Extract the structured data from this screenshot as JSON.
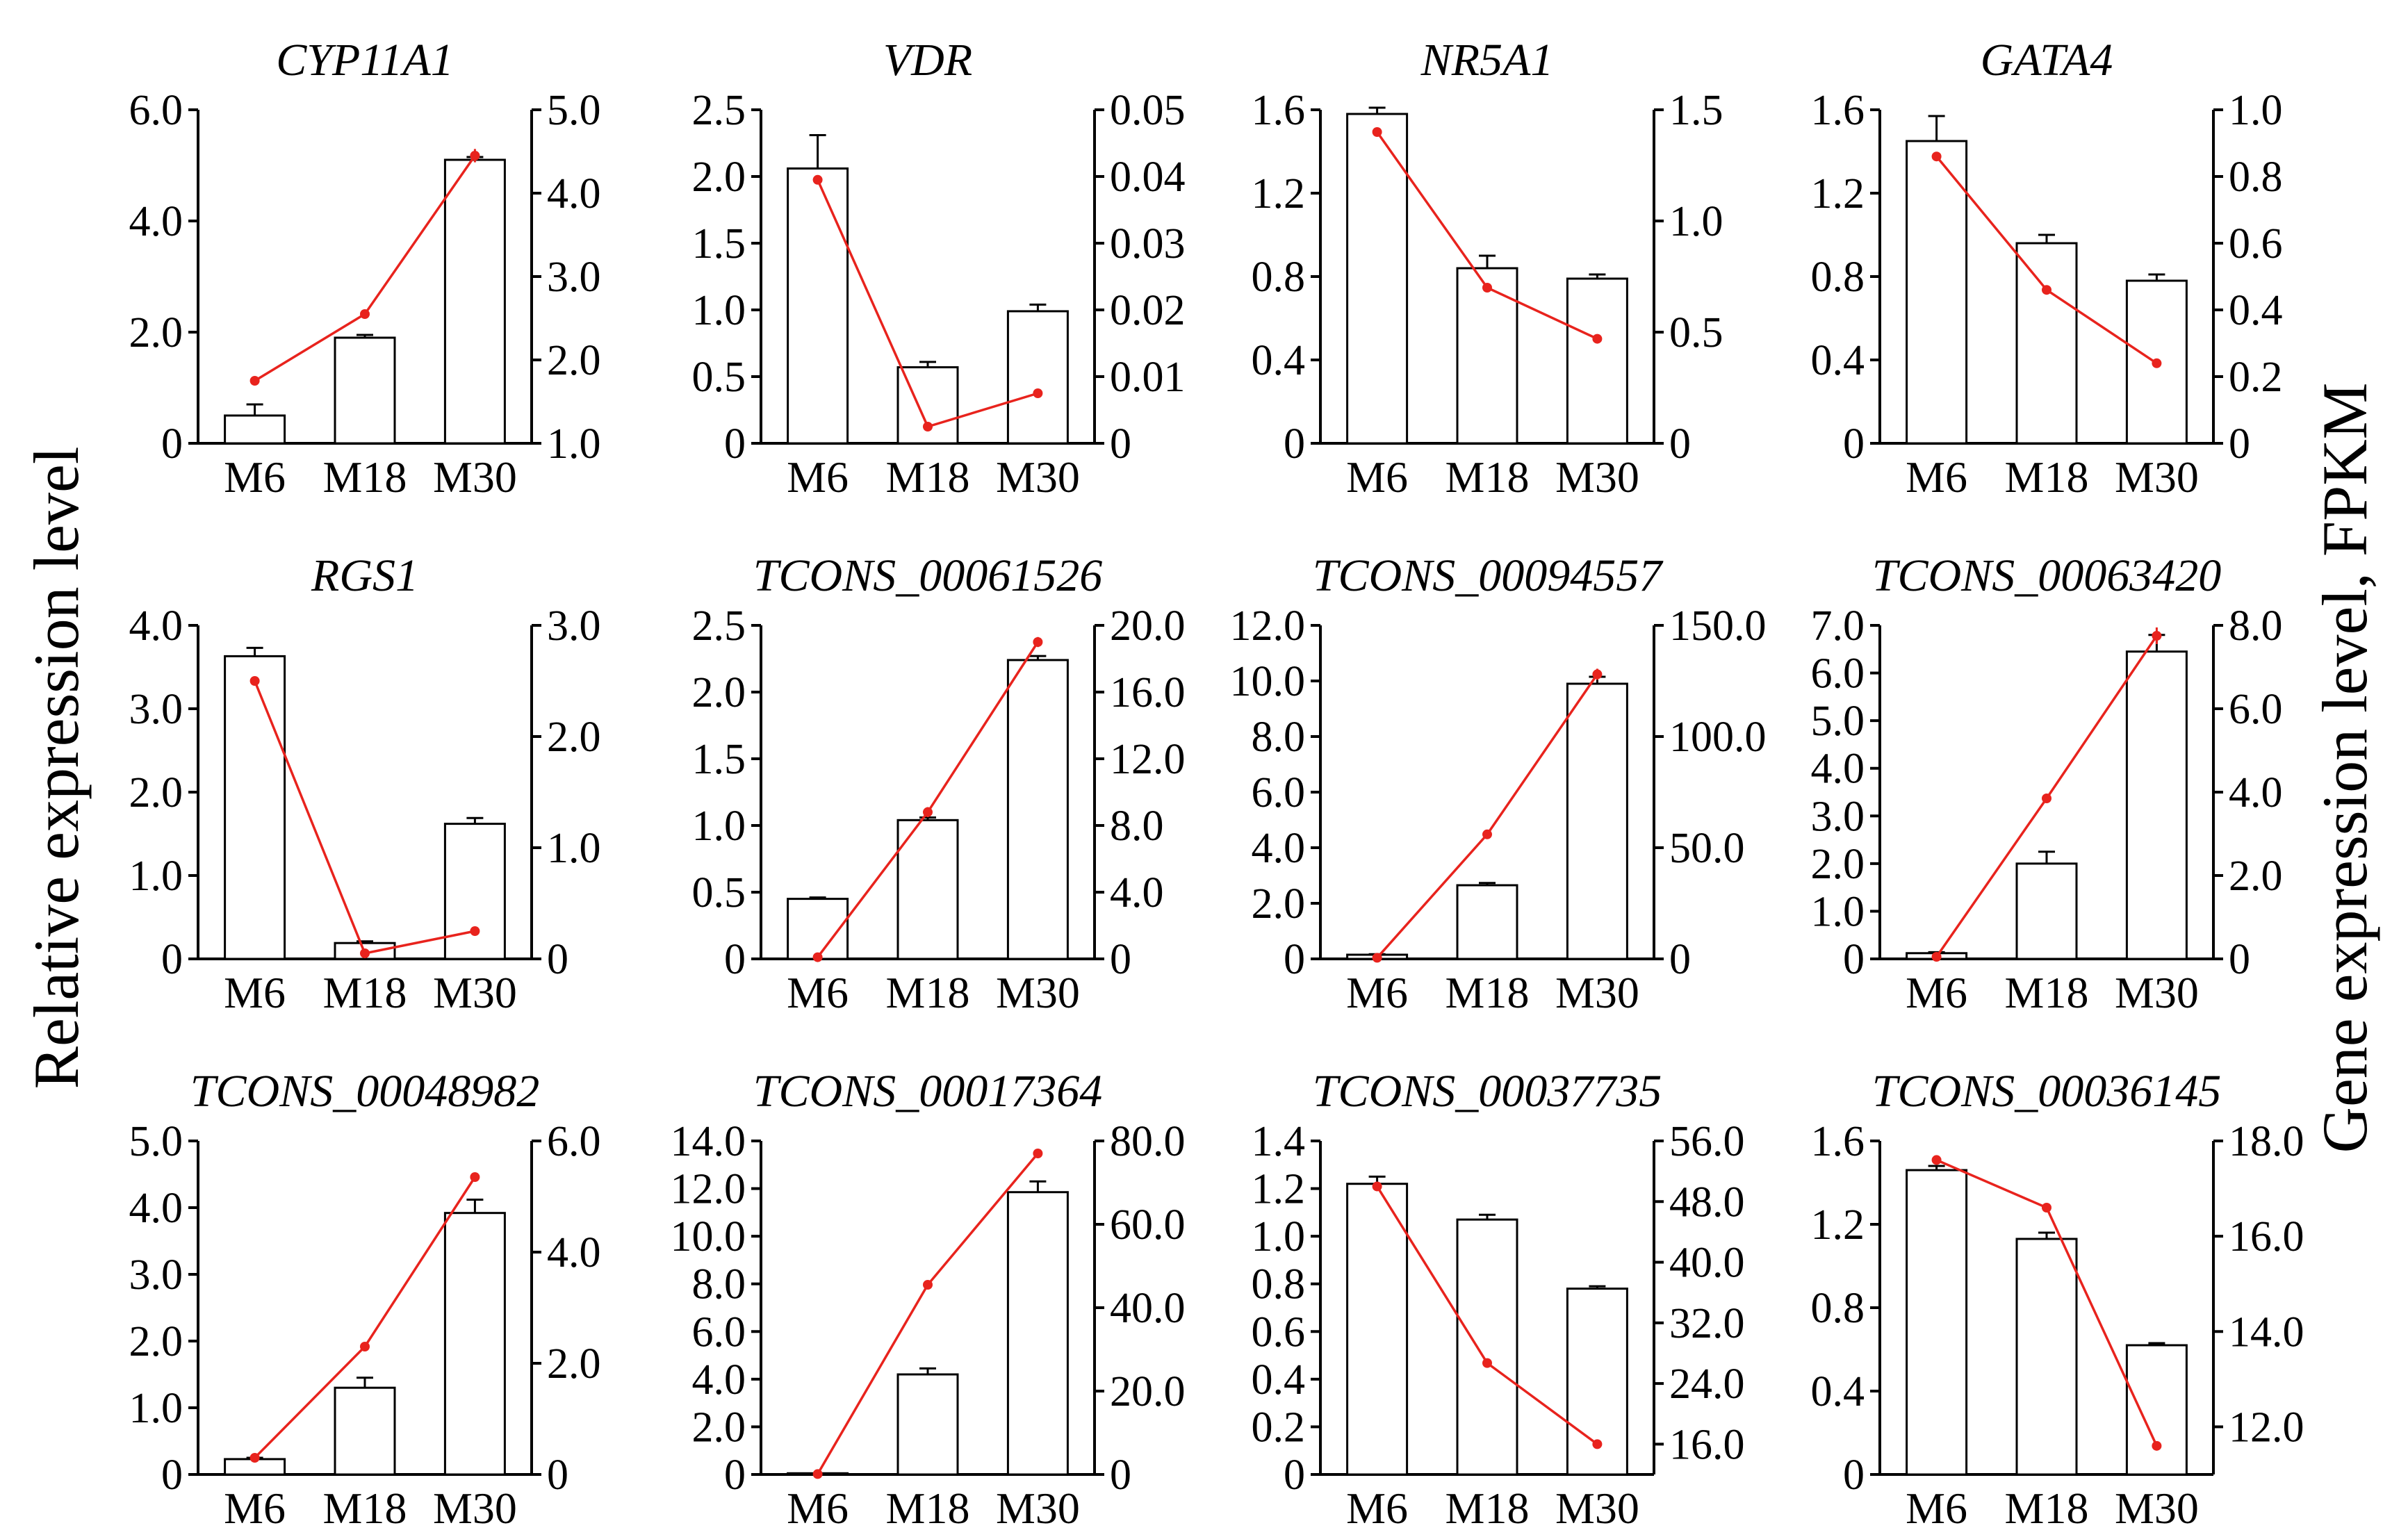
{
  "figure": {
    "left_axis_label": "Relative expression level",
    "right_axis_label": "Gene expression level, FPKM",
    "bar_color": "#ffffff",
    "bar_stroke": "#000000",
    "line_color": "#e8231d"
  },
  "chart_data": [
    {
      "type": "bar+line",
      "title": "CYP11A1",
      "categories": [
        "M6",
        "M18",
        "M30"
      ],
      "bar_axis": {
        "ylim": [
          0,
          6
        ],
        "ticks": [
          0,
          2,
          4,
          6
        ],
        "tick_labels": [
          "0",
          "2.0",
          "4.0",
          "6.0"
        ]
      },
      "line_axis": {
        "ylim": [
          1,
          5
        ],
        "ticks": [
          1,
          2,
          3,
          4,
          5
        ],
        "tick_labels": [
          "1.0",
          "2.0",
          "3.0",
          "4.0",
          "5.0"
        ]
      },
      "bars": [
        0.5,
        1.9,
        5.1
      ],
      "bar_errors": [
        0.2,
        0.05,
        0.05
      ],
      "line": [
        1.75,
        2.55,
        4.45
      ],
      "line_errors": [
        0,
        0,
        0.08
      ]
    },
    {
      "type": "bar+line",
      "title": "VDR",
      "categories": [
        "M6",
        "M18",
        "M30"
      ],
      "bar_axis": {
        "ylim": [
          0,
          2.5
        ],
        "ticks": [
          0,
          0.5,
          1,
          1.5,
          2,
          2.5
        ],
        "tick_labels": [
          "0",
          "0.5",
          "1.0",
          "1.5",
          "2.0",
          "2.5"
        ]
      },
      "line_axis": {
        "ylim": [
          0,
          0.05
        ],
        "ticks": [
          0,
          0.01,
          0.02,
          0.03,
          0.04,
          0.05
        ],
        "tick_labels": [
          "0",
          "0.01",
          "0.02",
          "0.03",
          "0.04",
          "0.05"
        ]
      },
      "bars": [
        2.06,
        0.57,
        0.99
      ],
      "bar_errors": [
        0.25,
        0.04,
        0.05
      ],
      "line": [
        0.0395,
        0.0025,
        0.0075
      ],
      "line_errors": [
        0,
        0,
        0
      ]
    },
    {
      "type": "bar+line",
      "title": "NR5A1",
      "categories": [
        "M6",
        "M18",
        "M30"
      ],
      "bar_axis": {
        "ylim": [
          0,
          1.6
        ],
        "ticks": [
          0,
          0.4,
          0.8,
          1.2,
          1.6
        ],
        "tick_labels": [
          "0",
          "0.4",
          "0.8",
          "1.2",
          "1.6"
        ]
      },
      "line_axis": {
        "ylim": [
          0,
          1.5
        ],
        "ticks": [
          0,
          0.5,
          1,
          1.5
        ],
        "tick_labels": [
          "0",
          "0.5",
          "1.0",
          "1.5"
        ]
      },
      "bars": [
        1.58,
        0.84,
        0.79
      ],
      "bar_errors": [
        0.03,
        0.06,
        0.02
      ],
      "line": [
        1.4,
        0.7,
        0.47
      ],
      "line_errors": [
        0,
        0,
        0
      ]
    },
    {
      "type": "bar+line",
      "title": "GATA4",
      "categories": [
        "M6",
        "M18",
        "M30"
      ],
      "bar_axis": {
        "ylim": [
          0,
          1.6
        ],
        "ticks": [
          0,
          0.4,
          0.8,
          1.2,
          1.6
        ],
        "tick_labels": [
          "0",
          "0.4",
          "0.8",
          "1.2",
          "1.6"
        ]
      },
      "line_axis": {
        "ylim": [
          0,
          1
        ],
        "ticks": [
          0,
          0.2,
          0.4,
          0.6,
          0.8,
          1
        ],
        "tick_labels": [
          "0",
          "0.2",
          "0.4",
          "0.6",
          "0.8",
          "1.0"
        ]
      },
      "bars": [
        1.45,
        0.96,
        0.78
      ],
      "bar_errors": [
        0.12,
        0.04,
        0.03
      ],
      "line": [
        0.86,
        0.46,
        0.24
      ],
      "line_errors": [
        0,
        0,
        0
      ]
    },
    {
      "type": "bar+line",
      "title": "RGS1",
      "categories": [
        "M6",
        "M18",
        "M30"
      ],
      "bar_axis": {
        "ylim": [
          0,
          4
        ],
        "ticks": [
          0,
          1,
          2,
          3,
          4
        ],
        "tick_labels": [
          "0",
          "1.0",
          "2.0",
          "3.0",
          "4.0"
        ]
      },
      "line_axis": {
        "ylim": [
          0,
          3
        ],
        "ticks": [
          0,
          1,
          2,
          3
        ],
        "tick_labels": [
          "0",
          "1.0",
          "2.0",
          "3.0"
        ]
      },
      "bars": [
        3.63,
        0.19,
        1.62
      ],
      "bar_errors": [
        0.1,
        0.02,
        0.07
      ],
      "line": [
        2.5,
        0.05,
        0.25
      ],
      "line_errors": [
        0,
        0,
        0
      ]
    },
    {
      "type": "bar+line",
      "title": "TCONS_00061526",
      "categories": [
        "M6",
        "M18",
        "M30"
      ],
      "bar_axis": {
        "ylim": [
          0,
          2.5
        ],
        "ticks": [
          0,
          0.5,
          1,
          1.5,
          2,
          2.5
        ],
        "tick_labels": [
          "0",
          "0.5",
          "1.0",
          "1.5",
          "2.0",
          "2.5"
        ]
      },
      "line_axis": {
        "ylim": [
          0,
          20
        ],
        "ticks": [
          0,
          4,
          8,
          12,
          16,
          20
        ],
        "tick_labels": [
          "0",
          "4.0",
          "8.0",
          "12.0",
          "16.0",
          "20.0"
        ]
      },
      "bars": [
        0.45,
        1.04,
        2.24
      ],
      "bar_errors": [
        0.01,
        0.02,
        0.03
      ],
      "line": [
        0.1,
        8.8,
        19.0
      ],
      "line_errors": [
        0,
        0.3,
        0.3
      ]
    },
    {
      "type": "bar+line",
      "title": "TCONS_00094557",
      "categories": [
        "M6",
        "M18",
        "M30"
      ],
      "bar_axis": {
        "ylim": [
          0,
          12
        ],
        "ticks": [
          0,
          2,
          4,
          6,
          8,
          10,
          12
        ],
        "tick_labels": [
          "0",
          "2.0",
          "4.0",
          "6.0",
          "8.0",
          "10.0",
          "12.0"
        ]
      },
      "line_axis": {
        "ylim": [
          0,
          150
        ],
        "ticks": [
          0,
          50,
          100,
          150
        ],
        "tick_labels": [
          "0",
          "50.0",
          "100.0",
          "150.0"
        ]
      },
      "bars": [
        0.15,
        2.65,
        9.9
      ],
      "bar_errors": [
        0.02,
        0.08,
        0.25
      ],
      "line": [
        0.5,
        56.0,
        128.0
      ],
      "line_errors": [
        0,
        0,
        2.5
      ]
    },
    {
      "type": "bar+line",
      "title": "TCONS_00063420",
      "categories": [
        "M6",
        "M18",
        "M30"
      ],
      "bar_axis": {
        "ylim": [
          0,
          7
        ],
        "ticks": [
          0,
          1,
          2,
          3,
          4,
          5,
          6,
          7
        ],
        "tick_labels": [
          "0",
          "1.0",
          "2.0",
          "3.0",
          "4.0",
          "5.0",
          "6.0",
          "7.0"
        ]
      },
      "line_axis": {
        "ylim": [
          0,
          8
        ],
        "ticks": [
          0,
          2,
          4,
          6,
          8
        ],
        "tick_labels": [
          "0",
          "2.0",
          "4.0",
          "6.0",
          "8.0"
        ]
      },
      "bars": [
        0.12,
        2.0,
        6.45
      ],
      "bar_errors": [
        0.02,
        0.25,
        0.35
      ],
      "line": [
        0.05,
        3.85,
        7.75
      ],
      "line_errors": [
        0,
        0,
        0.2
      ]
    },
    {
      "type": "bar+line",
      "title": "TCONS_00048982",
      "categories": [
        "M6",
        "M18",
        "M30"
      ],
      "bar_axis": {
        "ylim": [
          0,
          5
        ],
        "ticks": [
          0,
          1,
          2,
          3,
          4,
          5
        ],
        "tick_labels": [
          "0",
          "1.0",
          "2.0",
          "3.0",
          "4.0",
          "5.0"
        ]
      },
      "line_axis": {
        "ylim": [
          0,
          6
        ],
        "ticks": [
          0,
          2,
          4,
          6
        ],
        "tick_labels": [
          "0",
          "2.0",
          "4.0",
          "6.0"
        ]
      },
      "bars": [
        0.23,
        1.3,
        3.92
      ],
      "bar_errors": [
        0.02,
        0.15,
        0.2
      ],
      "line": [
        0.3,
        2.3,
        5.35
      ],
      "line_errors": [
        0,
        0,
        0
      ]
    },
    {
      "type": "bar+line",
      "title": "TCONS_00017364",
      "categories": [
        "M6",
        "M18",
        "M30"
      ],
      "bar_axis": {
        "ylim": [
          0,
          14
        ],
        "ticks": [
          0,
          2,
          4,
          6,
          8,
          10,
          12,
          14
        ],
        "tick_labels": [
          "0",
          "2.0",
          "4.0",
          "6.0",
          "8.0",
          "10.0",
          "12.0",
          "14.0"
        ]
      },
      "line_axis": {
        "ylim": [
          0,
          80
        ],
        "ticks": [
          0,
          20,
          40,
          60,
          80
        ],
        "tick_labels": [
          "0",
          "20.0",
          "40.0",
          "60.0",
          "80.0"
        ]
      },
      "bars": [
        0.05,
        4.2,
        11.85
      ],
      "bar_errors": [
        0,
        0.25,
        0.45
      ],
      "line": [
        0.1,
        45.5,
        77.0
      ],
      "line_errors": [
        0,
        0,
        0
      ]
    },
    {
      "type": "bar+line",
      "title": "TCONS_00037735",
      "categories": [
        "M6",
        "M18",
        "M30"
      ],
      "bar_axis": {
        "ylim": [
          0,
          1.4
        ],
        "ticks": [
          0,
          0.2,
          0.4,
          0.6,
          0.8,
          1,
          1.2,
          1.4
        ],
        "tick_labels": [
          "0",
          "0.2",
          "0.4",
          "0.6",
          "0.8",
          "1.0",
          "1.2",
          "1.4"
        ]
      },
      "line_axis": {
        "ylim": [
          12,
          56
        ],
        "ticks": [
          16,
          24,
          32,
          40,
          48,
          56
        ],
        "tick_labels": [
          "16.0",
          "24.0",
          "32.0",
          "40.0",
          "48.0",
          "56.0"
        ]
      },
      "bars": [
        1.22,
        1.07,
        0.78
      ],
      "bar_errors": [
        0.03,
        0.02,
        0.01
      ],
      "line": [
        50.0,
        26.7,
        16.0
      ],
      "line_errors": [
        0,
        0,
        0
      ]
    },
    {
      "type": "bar+line",
      "title": "TCONS_00036145",
      "categories": [
        "M6",
        "M18",
        "M30"
      ],
      "bar_axis": {
        "ylim": [
          0,
          1.6
        ],
        "ticks": [
          0,
          0.4,
          0.8,
          1.2,
          1.6
        ],
        "tick_labels": [
          "0",
          "0.4",
          "0.8",
          "1.2",
          "1.6"
        ]
      },
      "line_axis": {
        "ylim": [
          11,
          18
        ],
        "ticks": [
          12,
          14,
          16,
          18
        ],
        "tick_labels": [
          "12.0",
          "14.0",
          "16.0",
          "18.0"
        ]
      },
      "bars": [
        1.46,
        1.13,
        0.62
      ],
      "bar_errors": [
        0.02,
        0.03,
        0.01
      ],
      "line": [
        17.6,
        16.6,
        11.6
      ],
      "line_errors": [
        0,
        0,
        0
      ]
    }
  ]
}
